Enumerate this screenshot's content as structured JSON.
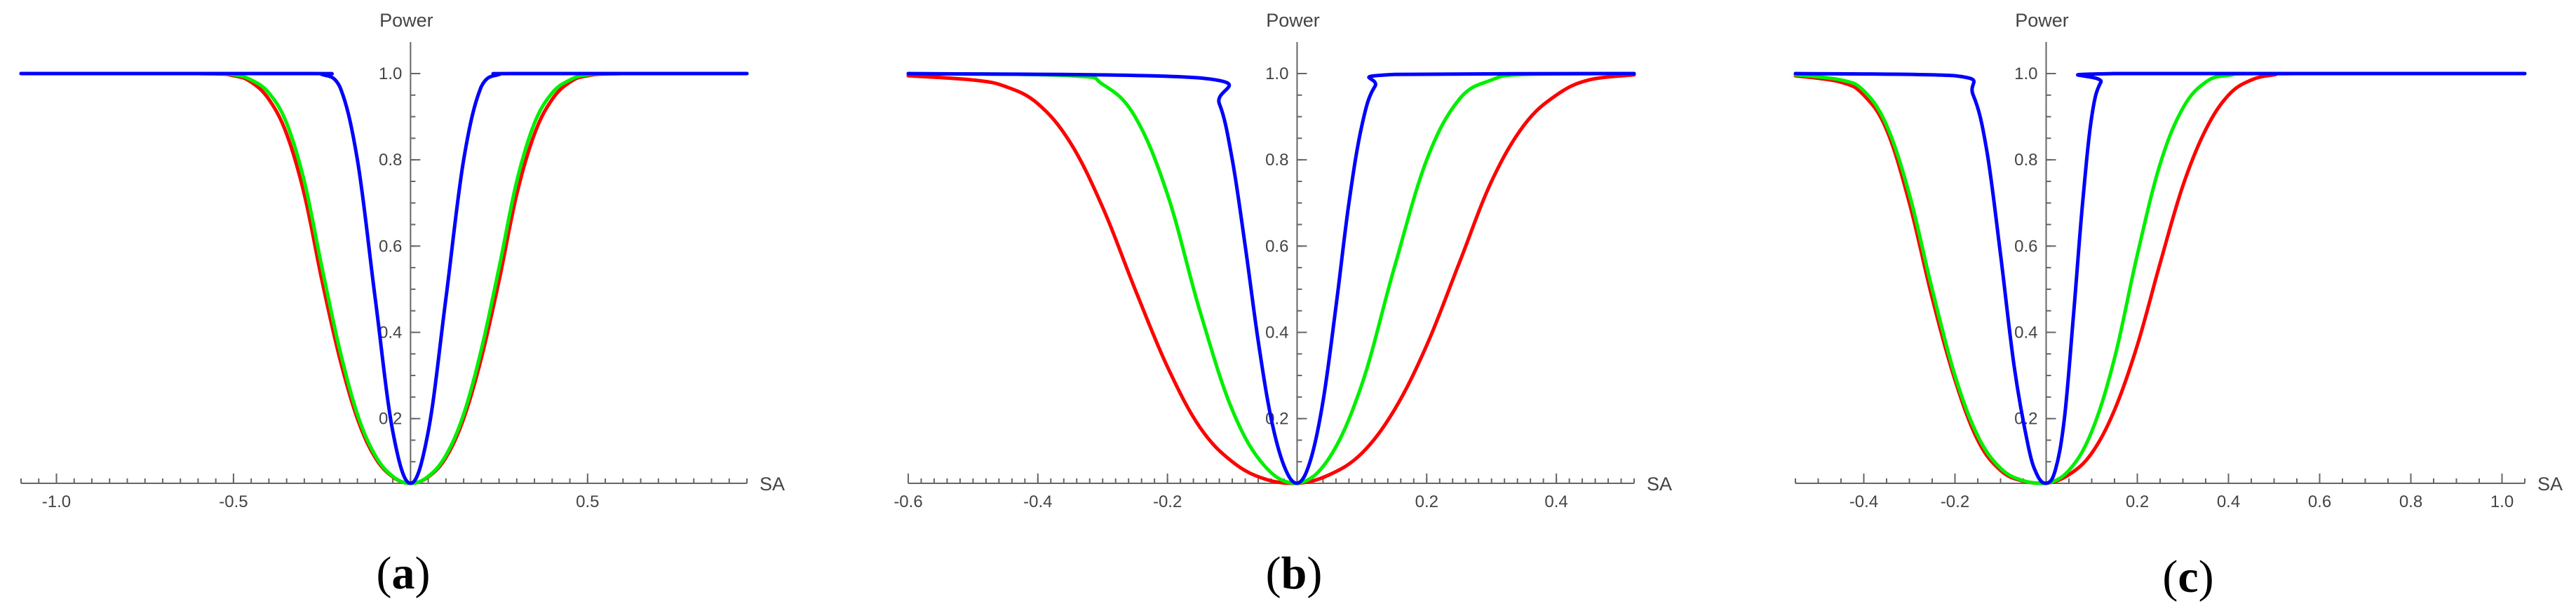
{
  "chart_data": [
    {
      "type": "line",
      "panel_label": "a",
      "xlabel": "SA",
      "ylabel": "Power",
      "xlim": [
        -1.1,
        0.95
      ],
      "ylim": [
        0.05,
        1.0
      ],
      "x_ticks": [
        -1.0,
        -0.5,
        0.5
      ],
      "x_tick_labels": [
        "-1.0",
        "-0.5",
        "0.5"
      ],
      "y_ticks": [
        0.2,
        0.4,
        0.6,
        0.8,
        1.0
      ],
      "y_tick_labels": [
        "0.2",
        "0.4",
        "0.6",
        "0.8",
        "1.0"
      ],
      "grid": false,
      "series": [
        {
          "color": "#ff0000",
          "x": [
            -1.1,
            -0.6,
            -0.5,
            -0.45,
            -0.4,
            -0.35,
            -0.3,
            -0.25,
            -0.2,
            -0.15,
            -0.1,
            -0.05,
            0.0,
            0.05,
            0.1,
            0.15,
            0.2,
            0.25,
            0.3,
            0.35,
            0.4,
            0.45,
            0.5,
            0.6,
            0.95
          ],
          "y": [
            1.0,
            1.0,
            0.995,
            0.98,
            0.94,
            0.86,
            0.72,
            0.52,
            0.34,
            0.2,
            0.11,
            0.065,
            0.05,
            0.065,
            0.11,
            0.2,
            0.34,
            0.52,
            0.72,
            0.86,
            0.94,
            0.98,
            0.995,
            1.0,
            1.0
          ]
        },
        {
          "color": "#00ee00",
          "x": [
            -1.1,
            -0.6,
            -0.5,
            -0.45,
            -0.4,
            -0.35,
            -0.3,
            -0.25,
            -0.2,
            -0.15,
            -0.1,
            -0.05,
            0.0,
            0.05,
            0.1,
            0.15,
            0.2,
            0.25,
            0.3,
            0.35,
            0.4,
            0.45,
            0.5,
            0.6,
            0.95
          ],
          "y": [
            1.0,
            1.0,
            0.997,
            0.985,
            0.955,
            0.885,
            0.75,
            0.55,
            0.36,
            0.21,
            0.115,
            0.066,
            0.05,
            0.066,
            0.115,
            0.21,
            0.36,
            0.55,
            0.75,
            0.885,
            0.955,
            0.985,
            0.997,
            1.0,
            1.0
          ]
        },
        {
          "color": "#0000ff",
          "x": [
            -1.1,
            -0.3,
            -0.25,
            -0.2,
            -0.15,
            -0.1,
            -0.05,
            0.0,
            0.05,
            0.1,
            0.15,
            0.2,
            0.25,
            0.3,
            0.95
          ],
          "y": [
            1.0,
            1.0,
            0.998,
            0.97,
            0.8,
            0.48,
            0.17,
            0.05,
            0.17,
            0.48,
            0.8,
            0.97,
            0.998,
            1.0,
            1.0
          ]
        }
      ]
    },
    {
      "type": "line",
      "panel_label": "b",
      "xlabel": "SA",
      "ylabel": "Power",
      "xlim": [
        -0.6,
        0.52
      ],
      "ylim": [
        0.05,
        1.0
      ],
      "x_ticks": [
        -0.6,
        -0.4,
        -0.2,
        0.2,
        0.4
      ],
      "x_tick_labels": [
        "-0.6",
        "-0.4",
        "-0.2",
        "0.2",
        "0.4"
      ],
      "y_ticks": [
        0.2,
        0.4,
        0.6,
        0.8,
        1.0
      ],
      "y_tick_labels": [
        "0.2",
        "0.4",
        "0.6",
        "0.8",
        "1.0"
      ],
      "grid": false,
      "series": [
        {
          "color": "#ff0000",
          "x": [
            -0.6,
            -0.5,
            -0.45,
            -0.4,
            -0.35,
            -0.3,
            -0.25,
            -0.2,
            -0.15,
            -0.1,
            -0.05,
            0.0,
            0.05,
            0.1,
            0.15,
            0.2,
            0.25,
            0.3,
            0.35,
            0.4,
            0.45,
            0.52
          ],
          "y": [
            0.995,
            0.985,
            0.97,
            0.93,
            0.84,
            0.69,
            0.5,
            0.32,
            0.18,
            0.1,
            0.06,
            0.05,
            0.07,
            0.12,
            0.22,
            0.37,
            0.56,
            0.75,
            0.88,
            0.95,
            0.985,
            0.997
          ]
        },
        {
          "color": "#00ee00",
          "x": [
            -0.6,
            -0.35,
            -0.3,
            -0.25,
            -0.2,
            -0.15,
            -0.1,
            -0.05,
            0.0,
            0.05,
            0.1,
            0.15,
            0.2,
            0.25,
            0.3,
            0.35,
            0.52
          ],
          "y": [
            1.0,
            0.995,
            0.975,
            0.9,
            0.72,
            0.45,
            0.22,
            0.09,
            0.05,
            0.11,
            0.28,
            0.55,
            0.8,
            0.94,
            0.985,
            0.998,
            1.0
          ]
        },
        {
          "color": "#0000ff",
          "x": [
            -0.6,
            -0.15,
            -0.12,
            -0.1,
            -0.08,
            -0.06,
            -0.04,
            -0.02,
            0.0,
            0.02,
            0.04,
            0.06,
            0.08,
            0.1,
            0.12,
            0.15,
            0.52
          ],
          "y": [
            1.0,
            0.99,
            0.93,
            0.8,
            0.6,
            0.38,
            0.2,
            0.09,
            0.05,
            0.1,
            0.24,
            0.46,
            0.7,
            0.88,
            0.97,
            0.998,
            1.0
          ]
        }
      ]
    },
    {
      "type": "line",
      "panel_label": "c",
      "xlabel": "SA",
      "ylabel": "Power",
      "xlim": [
        -0.55,
        1.05
      ],
      "ylim": [
        0.05,
        1.0
      ],
      "x_ticks": [
        -0.4,
        -0.2,
        0.2,
        0.4,
        0.6,
        0.8,
        1.0
      ],
      "x_tick_labels": [
        "-0.4",
        "-0.2",
        "0.2",
        "0.4",
        "0.6",
        "0.8",
        "1.0"
      ],
      "y_ticks": [
        0.2,
        0.4,
        0.6,
        0.8,
        1.0
      ],
      "y_tick_labels": [
        "0.2",
        "0.4",
        "0.6",
        "0.8",
        "1.0"
      ],
      "grid": false,
      "series": [
        {
          "color": "#ff0000",
          "x": [
            -0.55,
            -0.45,
            -0.4,
            -0.35,
            -0.3,
            -0.25,
            -0.2,
            -0.15,
            -0.1,
            -0.05,
            0.0,
            0.05,
            0.1,
            0.15,
            0.2,
            0.25,
            0.3,
            0.35,
            0.4,
            0.45,
            0.5,
            0.55,
            1.05
          ],
          "y": [
            0.995,
            0.98,
            0.95,
            0.87,
            0.7,
            0.48,
            0.29,
            0.15,
            0.08,
            0.055,
            0.05,
            0.07,
            0.12,
            0.22,
            0.37,
            0.56,
            0.74,
            0.87,
            0.95,
            0.985,
            0.997,
            1.0,
            1.0
          ]
        },
        {
          "color": "#00ee00",
          "x": [
            -0.55,
            -0.45,
            -0.4,
            -0.35,
            -0.3,
            -0.25,
            -0.2,
            -0.15,
            -0.1,
            -0.05,
            0.0,
            0.05,
            0.1,
            0.15,
            0.2,
            0.25,
            0.3,
            0.35,
            0.4,
            0.5,
            1.05
          ],
          "y": [
            0.997,
            0.985,
            0.96,
            0.88,
            0.72,
            0.5,
            0.3,
            0.16,
            0.085,
            0.056,
            0.05,
            0.08,
            0.17,
            0.34,
            0.58,
            0.79,
            0.92,
            0.98,
            0.996,
            1.0,
            1.0
          ]
        },
        {
          "color": "#0000ff",
          "x": [
            -0.55,
            -0.2,
            -0.16,
            -0.13,
            -0.1,
            -0.07,
            -0.04,
            -0.02,
            0.0,
            0.02,
            0.04,
            0.06,
            0.08,
            0.1,
            0.12,
            0.15,
            1.05
          ],
          "y": [
            1.0,
            0.995,
            0.95,
            0.82,
            0.58,
            0.32,
            0.14,
            0.07,
            0.05,
            0.08,
            0.2,
            0.44,
            0.7,
            0.9,
            0.98,
            1.0,
            1.0
          ]
        }
      ]
    }
  ]
}
